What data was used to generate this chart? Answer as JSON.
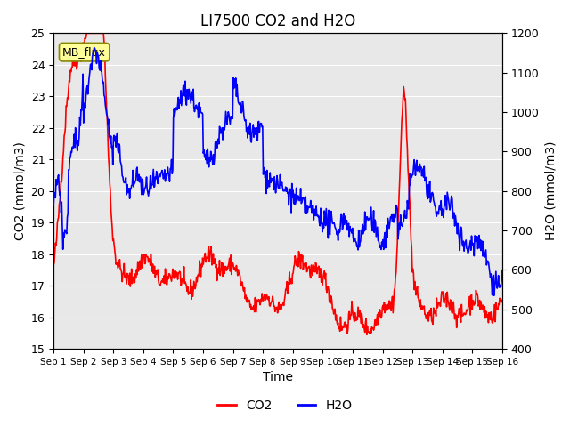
{
  "title": "LI7500 CO2 and H2O",
  "xlabel": "Time",
  "ylabel_left": "CO2 (mmol/m3)",
  "ylabel_right": "H2O (mmol/m3)",
  "ylim_left": [
    15.0,
    25.0
  ],
  "ylim_right": [
    400,
    1200
  ],
  "yticks_left": [
    15.0,
    16.0,
    17.0,
    18.0,
    19.0,
    20.0,
    21.0,
    22.0,
    23.0,
    24.0,
    25.0
  ],
  "yticks_right": [
    400,
    500,
    600,
    700,
    800,
    900,
    1000,
    1100,
    1200
  ],
  "xtick_labels": [
    "Sep 1",
    "Sep 2",
    "Sep 3",
    "Sep 4",
    "Sep 5",
    "Sep 6",
    "Sep 7",
    "Sep 8",
    "Sep 9",
    "Sep 10",
    "Sep 11",
    "Sep 12",
    "Sep 13",
    "Sep 14",
    "Sep 15",
    "Sep 16"
  ],
  "co2_color": "#FF0000",
  "h2o_color": "#0000FF",
  "bg_color": "#E8E8E8",
  "legend_items": [
    "CO2",
    "H2O"
  ],
  "annotation_text": "MB_flux",
  "annotation_bg": "#FFFF99",
  "annotation_border": "#888800",
  "line_width": 1.2,
  "title_fontsize": 12
}
